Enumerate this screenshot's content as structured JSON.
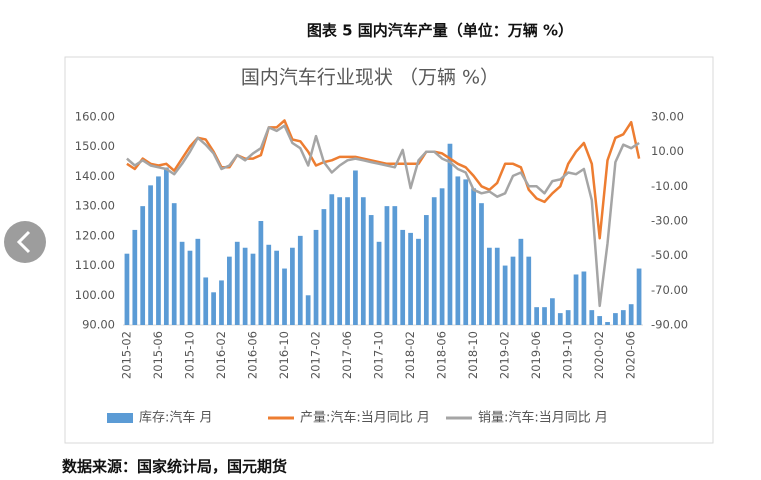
{
  "header": {
    "title": "图表 5 国内汽车产量（单位：万辆 %）"
  },
  "footer": {
    "source": "数据来源：国家统计局，国元期货"
  },
  "chart_data": {
    "type": "bar-line",
    "title": "国内汽车行业现状 （万辆 %）",
    "categories": [
      "2015-02",
      null,
      null,
      null,
      "2015-06",
      null,
      null,
      null,
      "2015-10",
      null,
      null,
      null,
      "2016-02",
      null,
      null,
      null,
      "2016-06",
      null,
      null,
      null,
      "2016-10",
      null,
      null,
      null,
      "2017-02",
      null,
      null,
      null,
      "2017-06",
      null,
      null,
      null,
      "2017-10",
      null,
      null,
      null,
      "2018-02",
      null,
      null,
      null,
      "2018-06",
      null,
      null,
      null,
      "2018-10",
      null,
      null,
      null,
      "2019-02",
      null,
      null,
      null,
      "2019-06",
      null,
      null,
      null,
      "2019-10",
      null,
      null,
      null,
      "2020-02",
      null,
      null,
      null,
      "2020-06",
      null
    ],
    "series": [
      {
        "name": "库存:汽车 月",
        "type": "bar",
        "color": "#5b9bd5",
        "values": [
          114,
          122,
          130,
          137,
          140,
          143,
          131,
          118,
          115,
          119,
          106,
          101,
          105,
          113,
          118,
          116,
          114,
          125,
          117,
          115,
          109,
          116,
          120,
          100,
          122,
          129,
          134,
          133,
          133,
          142,
          133,
          127,
          118,
          130,
          130,
          122,
          121,
          119,
          127,
          133,
          136,
          151,
          140,
          139,
          136,
          131,
          116,
          116,
          110,
          113,
          119,
          113,
          96,
          96,
          99,
          94,
          95,
          107,
          108,
          95,
          93,
          91,
          94,
          95,
          97,
          109
        ]
      },
      {
        "name": "产量:汽车:当月同比 月",
        "type": "line",
        "axis": "y2",
        "color": "#ed7d31",
        "values": [
          3,
          0,
          6,
          3,
          2,
          3,
          -1,
          6,
          13,
          18,
          17,
          10,
          1,
          1,
          8,
          6,
          6,
          8,
          24,
          24,
          28,
          17,
          16,
          10,
          2,
          4,
          5,
          7,
          7,
          7,
          6,
          5,
          4,
          3,
          3,
          3,
          3,
          3,
          10,
          10,
          9,
          6,
          3,
          1,
          -4,
          -10,
          -12,
          -8,
          3,
          3,
          1,
          -12,
          -17,
          -19,
          -14,
          -10,
          3,
          10,
          15,
          3,
          -40,
          5,
          18,
          20,
          27,
          6
        ]
      },
      {
        "name": "销量:汽车:当月同比 月",
        "type": "line",
        "axis": "y2",
        "color": "#a5a5a5",
        "values": [
          6,
          2,
          5,
          2,
          1,
          0,
          -3,
          3,
          10,
          18,
          14,
          9,
          0,
          2,
          8,
          5,
          9,
          12,
          24,
          22,
          25,
          15,
          12,
          2,
          19,
          4,
          -2,
          2,
          5,
          6,
          5,
          4,
          3,
          2,
          1,
          11,
          -11,
          5,
          10,
          10,
          6,
          4,
          0,
          -2,
          -12,
          -14,
          -13,
          -16,
          -14,
          -4,
          -2,
          -10,
          -10,
          -14,
          -7,
          -6,
          -2,
          -3,
          0,
          -18,
          -79,
          -43,
          4,
          14,
          12,
          15
        ]
      }
    ],
    "ylim": [
      90,
      160
    ],
    "yticks": [
      {
        "value": 90,
        "label": "90.00"
      },
      {
        "value": 100,
        "label": "100.00"
      },
      {
        "value": 110,
        "label": "110.00"
      },
      {
        "value": 120,
        "label": "120.00"
      },
      {
        "value": 130,
        "label": "130.00"
      },
      {
        "value": 140,
        "label": "140.00"
      },
      {
        "value": 150,
        "label": "150.00"
      },
      {
        "value": 160,
        "label": "160.00"
      }
    ],
    "y2lim": [
      -90,
      30
    ],
    "y2ticks": [
      {
        "value": -90,
        "label": "-90.00"
      },
      {
        "value": -70,
        "label": "-70.00"
      },
      {
        "value": -50,
        "label": "-50.00"
      },
      {
        "value": -30,
        "label": "-30.00"
      },
      {
        "value": -10,
        "label": "-10.00"
      },
      {
        "value": 10,
        "label": "10.00"
      },
      {
        "value": 30,
        "label": "30.00"
      }
    ]
  }
}
